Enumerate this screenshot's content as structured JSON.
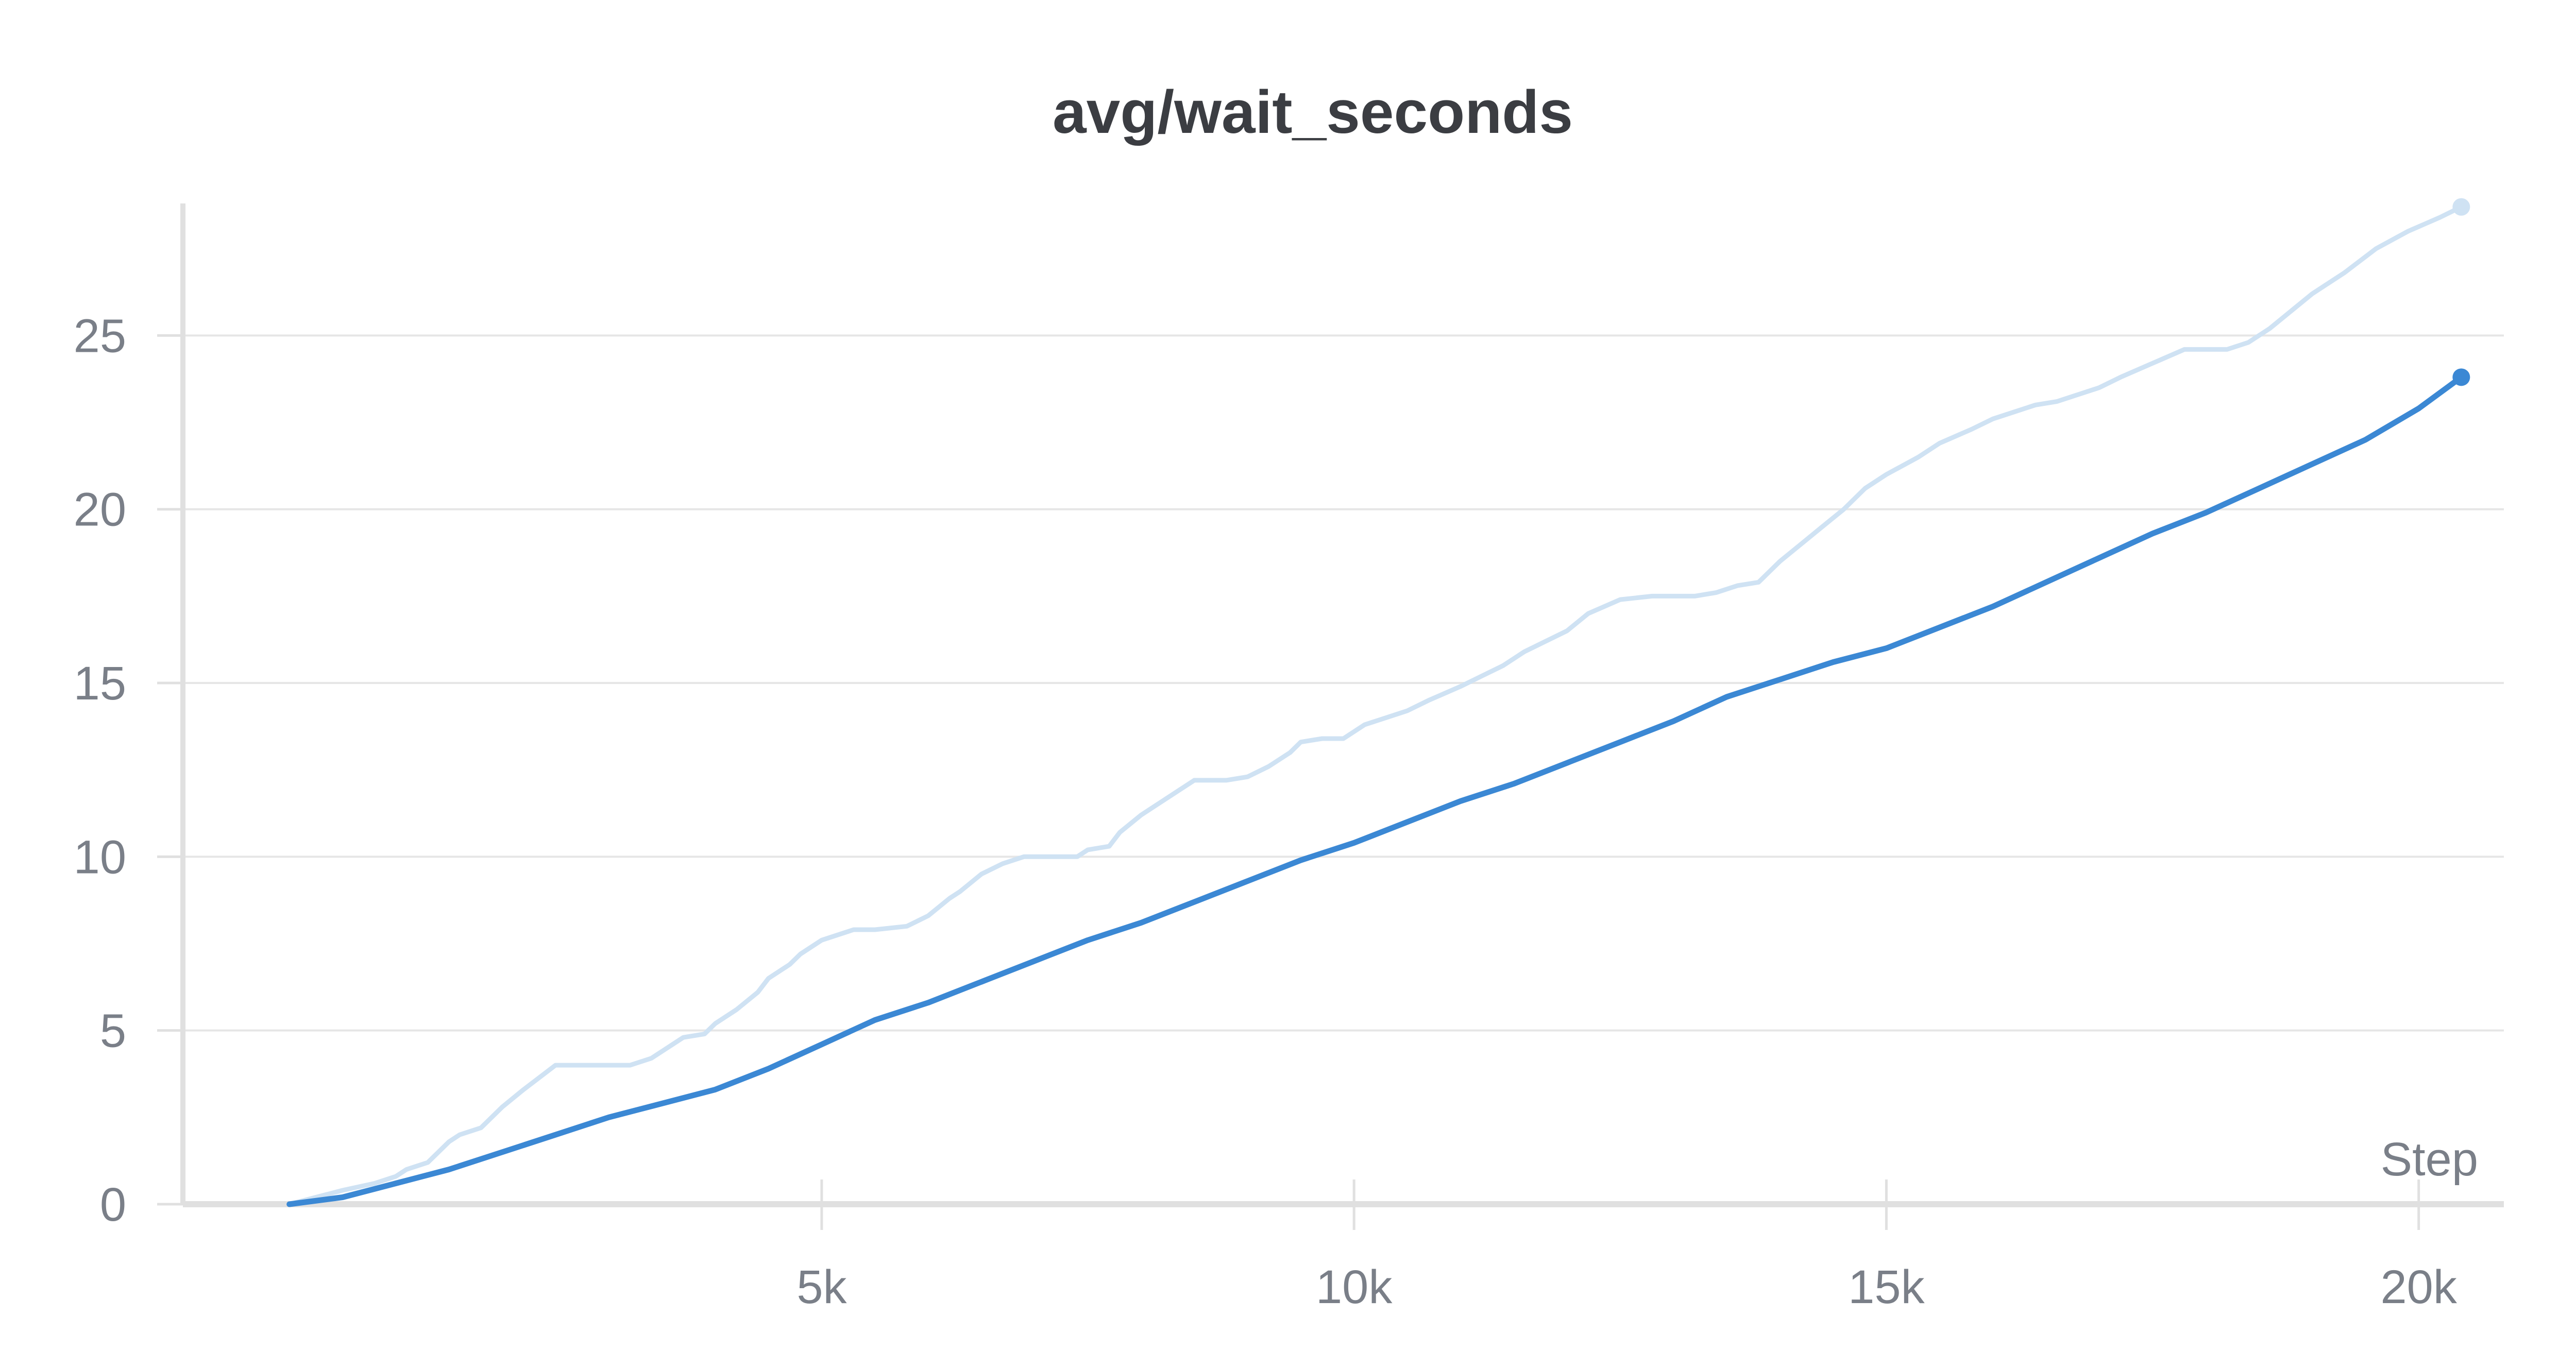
{
  "chart_data": {
    "type": "line",
    "title": "avg/wait_seconds",
    "xlabel": "Step",
    "ylabel": "",
    "xlim": [
      -1000,
      20800
    ],
    "ylim": [
      0,
      28.8
    ],
    "x_ticks": [
      5000,
      10000,
      15000,
      20000
    ],
    "x_tick_labels": [
      "5k",
      "10k",
      "15k",
      "20k"
    ],
    "y_ticks": [
      0,
      5,
      10,
      15,
      20,
      25
    ],
    "y_tick_labels": [
      "0",
      "5",
      "10",
      "15",
      "20",
      "25"
    ],
    "grid": true,
    "legend": "none",
    "colors": {
      "raw": "#cfe2f3",
      "smoothed": "#3b88d4",
      "grid": "#e6e6e6",
      "axis": "#e0e0e0",
      "text": "#7a7f88",
      "title": "#3b3d42"
    },
    "series": [
      {
        "role": "raw",
        "x": [
          0,
          500,
          800,
          1000,
          1100,
          1300,
          1500,
          1600,
          1800,
          2000,
          2200,
          2500,
          2600,
          2700,
          2800,
          3000,
          3200,
          3400,
          3600,
          3700,
          3900,
          4000,
          4200,
          4400,
          4500,
          4700,
          4800,
          5000,
          5300,
          5500,
          5800,
          6000,
          6200,
          6300,
          6500,
          6700,
          6900,
          7000,
          7200,
          7400,
          7500,
          7700,
          7800,
          8000,
          8200,
          8500,
          8700,
          8800,
          9000,
          9200,
          9400,
          9500,
          9700,
          9900,
          10100,
          10300,
          10500,
          10700,
          11000,
          11200,
          11400,
          11600,
          11800,
          12000,
          12200,
          12500,
          12800,
          13000,
          13200,
          13400,
          13600,
          13800,
          14000,
          14200,
          14400,
          14600,
          14800,
          15000,
          15300,
          15500,
          15800,
          16000,
          16200,
          16400,
          16600,
          16800,
          17000,
          17200,
          17500,
          17800,
          18000,
          18200,
          18400,
          18600,
          18800,
          19000,
          19300,
          19600,
          19900,
          20200,
          20400
        ],
        "y": [
          0,
          0.4,
          0.6,
          0.8,
          1.0,
          1.2,
          1.8,
          2.0,
          2.2,
          2.8,
          3.3,
          4.0,
          4.0,
          4.0,
          4.0,
          4.0,
          4.0,
          4.2,
          4.6,
          4.8,
          4.9,
          5.2,
          5.6,
          6.1,
          6.5,
          6.9,
          7.2,
          7.6,
          7.9,
          7.9,
          8.0,
          8.3,
          8.8,
          9.0,
          9.5,
          9.8,
          10.0,
          10.0,
          10.0,
          10.0,
          10.2,
          10.3,
          10.7,
          11.2,
          11.6,
          12.2,
          12.2,
          12.2,
          12.3,
          12.6,
          13.0,
          13.3,
          13.4,
          13.4,
          13.8,
          14.0,
          14.2,
          14.5,
          14.9,
          15.2,
          15.5,
          15.9,
          16.2,
          16.5,
          17.0,
          17.4,
          17.5,
          17.5,
          17.5,
          17.6,
          17.8,
          17.9,
          18.5,
          19.0,
          19.5,
          20.0,
          20.6,
          21.0,
          21.5,
          21.9,
          22.3,
          22.6,
          22.8,
          23.0,
          23.1,
          23.3,
          23.5,
          23.8,
          24.2,
          24.6,
          24.6,
          24.6,
          24.8,
          25.2,
          25.7,
          26.2,
          26.8,
          27.5,
          28.0,
          28.4,
          28.7
        ]
      },
      {
        "role": "smoothed",
        "x": [
          0,
          500,
          1000,
          1500,
          2000,
          2500,
          3000,
          3500,
          4000,
          4500,
          5000,
          5500,
          6000,
          6500,
          7000,
          7500,
          8000,
          8500,
          9000,
          9500,
          10000,
          10500,
          11000,
          11500,
          12000,
          12500,
          13000,
          13500,
          14000,
          14500,
          15000,
          15500,
          16000,
          16500,
          17000,
          17500,
          18000,
          18500,
          19000,
          19500,
          20000,
          20400
        ],
        "y": [
          0,
          0.2,
          0.6,
          1.0,
          1.5,
          2.0,
          2.5,
          2.9,
          3.3,
          3.9,
          4.6,
          5.3,
          5.8,
          6.4,
          7.0,
          7.6,
          8.1,
          8.7,
          9.3,
          9.9,
          10.4,
          11.0,
          11.6,
          12.1,
          12.7,
          13.3,
          13.9,
          14.6,
          15.1,
          15.6,
          16.0,
          16.6,
          17.2,
          17.9,
          18.6,
          19.3,
          19.9,
          20.6,
          21.3,
          22.0,
          22.9,
          23.8
        ]
      }
    ]
  }
}
